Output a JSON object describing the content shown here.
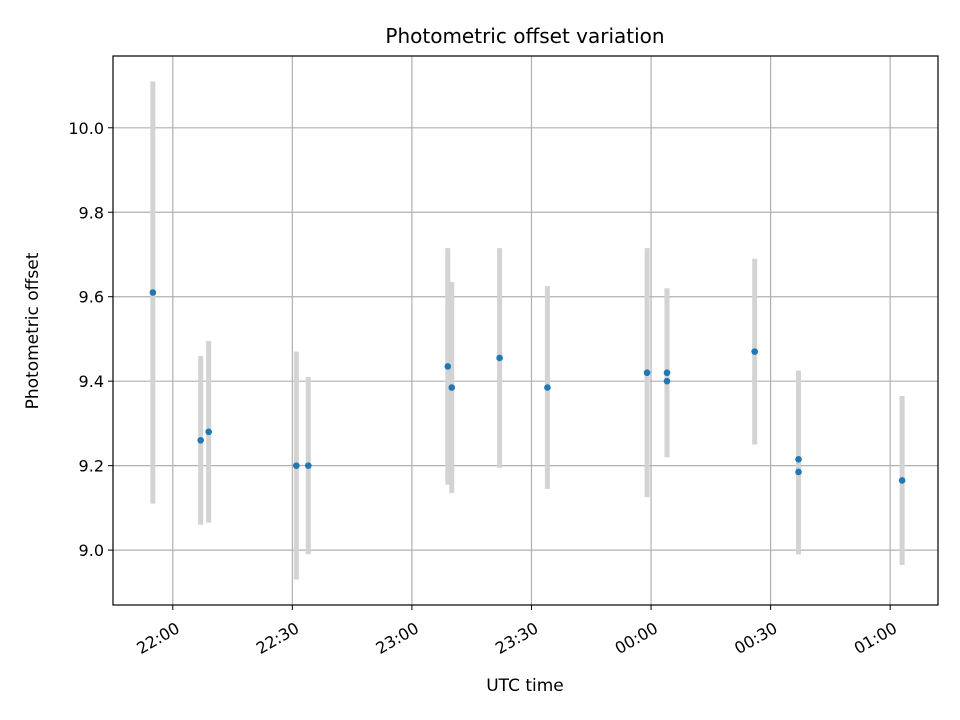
{
  "chart_data": {
    "type": "scatter",
    "title": "Photometric offset variation",
    "xlabel": "UTC time",
    "ylabel": "Photometric offset",
    "x_ticks": [
      "22:00",
      "22:30",
      "23:00",
      "23:30",
      "00:00",
      "00:30",
      "01:00"
    ],
    "x_tick_minutes": [
      0,
      30,
      60,
      90,
      120,
      150,
      180
    ],
    "y_ticks": [
      "9.0",
      "9.2",
      "9.4",
      "9.6",
      "9.8",
      "10.0"
    ],
    "y_tick_values": [
      9.0,
      9.2,
      9.4,
      9.6,
      9.8,
      10.0
    ],
    "xlim": [
      "21:45",
      "01:12"
    ],
    "ylim": [
      8.87,
      10.17
    ],
    "grid": true,
    "point_color": "#1f77b4",
    "errorbar_color": "#d3d3d3",
    "points": [
      {
        "time": "21:55",
        "y": 9.61,
        "yerr": 0.5
      },
      {
        "time": "22:07",
        "y": 9.26,
        "yerr": 0.2
      },
      {
        "time": "22:09",
        "y": 9.28,
        "yerr": 0.215
      },
      {
        "time": "22:31",
        "y": 9.2,
        "yerr": 0.27
      },
      {
        "time": "22:34",
        "y": 9.2,
        "yerr": 0.21
      },
      {
        "time": "23:09",
        "y": 9.435,
        "yerr": 0.28
      },
      {
        "time": "23:10",
        "y": 9.385,
        "yerr": 0.25
      },
      {
        "time": "23:22",
        "y": 9.455,
        "yerr": 0.26
      },
      {
        "time": "23:34",
        "y": 9.385,
        "yerr": 0.24
      },
      {
        "time": "23:59",
        "y": 9.42,
        "yerr": 0.295
      },
      {
        "time": "00:04",
        "y": 9.42,
        "yerr": 0.2
      },
      {
        "time": "00:04",
        "y": 9.4,
        "yerr": 0.18
      },
      {
        "time": "00:26",
        "y": 9.47,
        "yerr": 0.22
      },
      {
        "time": "00:37",
        "y": 9.215,
        "yerr": 0.21
      },
      {
        "time": "00:37",
        "y": 9.185,
        "yerr": 0.195
      },
      {
        "time": "01:03",
        "y": 9.165,
        "yerr": 0.2
      }
    ]
  }
}
